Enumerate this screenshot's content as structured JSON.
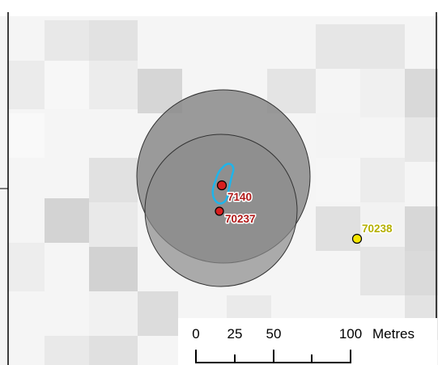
{
  "map": {
    "features": [
      {
        "id": "7140",
        "type": "point",
        "color": "#d81e1e"
      },
      {
        "id": "70237",
        "type": "point",
        "color": "#d81e1e"
      },
      {
        "id": "70238",
        "type": "point",
        "color": "#f5e600"
      }
    ],
    "buffer_fill_color": "#8a8a8a",
    "outline_color": "#1fb4ea",
    "scale_bar": {
      "ticks": [
        "0",
        "25",
        "50",
        "100"
      ],
      "unit": "Metres"
    }
  }
}
